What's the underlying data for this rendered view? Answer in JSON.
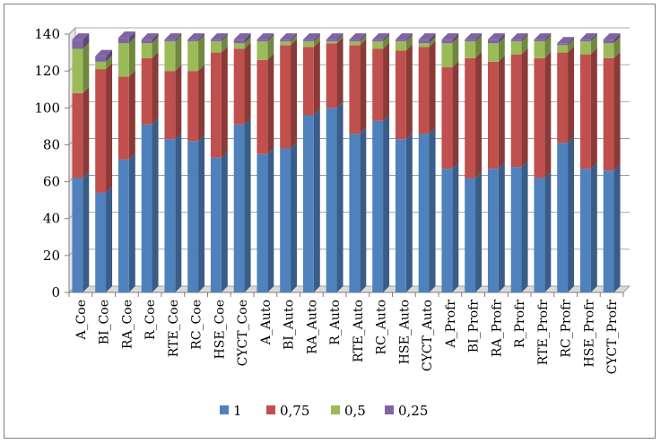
{
  "chart_data": {
    "type": "bar",
    "stacked": true,
    "categories": [
      "A_Coe",
      "BI_Coe",
      "RA_Coe",
      "R_Coe",
      "RTE_Coe",
      "RC_Coe",
      "HSE_Coe",
      "CYCT_Coe",
      "A_Auto",
      "BI_Auto",
      "RA_Auto",
      "R_Auto",
      "RTE_Auto",
      "RC_Auto",
      "HSE_Auto",
      "CYCT_Auto",
      "A_Profr",
      "BI_Profr",
      "RA_Profr",
      "R_Profr",
      "RTE_Profr",
      "RC_Profr",
      "HSE_Profr",
      "CYCT_Profr"
    ],
    "series": [
      {
        "name": "1",
        "color": "#4f81bd",
        "values": [
          62,
          54,
          72,
          91,
          83,
          82,
          73,
          91,
          75,
          78,
          96,
          100,
          86,
          93,
          83,
          86,
          67,
          62,
          67,
          68,
          62,
          81,
          67,
          66
        ]
      },
      {
        "name": "0,75",
        "color": "#c0504d",
        "values": [
          46,
          67,
          45,
          36,
          37,
          38,
          57,
          41,
          51,
          56,
          37,
          35,
          48,
          39,
          48,
          47,
          55,
          65,
          58,
          61,
          65,
          49,
          62,
          61
        ]
      },
      {
        "name": "0,5",
        "color": "#9bbb59",
        "values": [
          24,
          4,
          18,
          8,
          16,
          16,
          6,
          3,
          10,
          2,
          3,
          1,
          2,
          4,
          5,
          2,
          13,
          9,
          10,
          7,
          9,
          4,
          7,
          8
        ]
      },
      {
        "name": "0,25",
        "color": "#8064a2",
        "values": [
          5,
          3,
          3,
          2,
          1,
          1,
          1,
          2,
          1,
          1,
          1,
          1,
          1,
          1,
          1,
          2,
          2,
          1,
          2,
          1,
          1,
          1,
          1,
          2
        ]
      }
    ],
    "ylim": [
      0,
      140
    ],
    "yticks": [
      0,
      20,
      40,
      60,
      80,
      100,
      120,
      140
    ],
    "grid": true,
    "legend_position": "bottom"
  }
}
